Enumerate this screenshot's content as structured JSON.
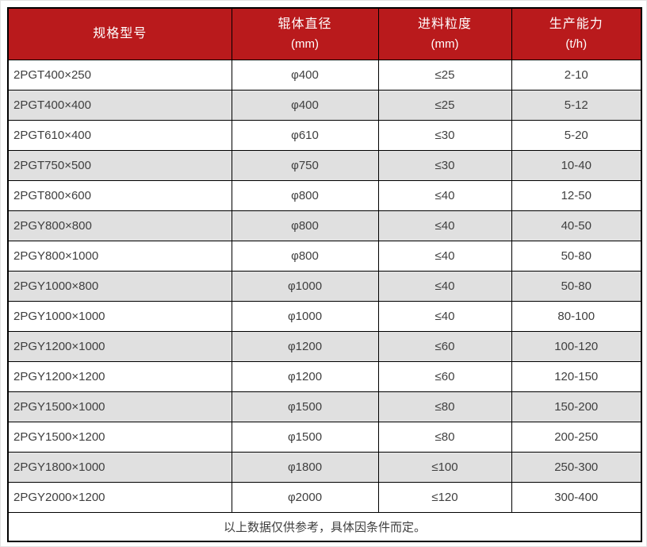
{
  "colors": {
    "header_bg": "#b91a1c",
    "header_fg": "#ffffff",
    "row_alt_bg": "#e0e0e0",
    "text_color": "#3f3f3f",
    "border_color": "#000000"
  },
  "table": {
    "headers": [
      {
        "title": "规格型号",
        "unit": ""
      },
      {
        "title": "辊体直径",
        "unit": "(mm)"
      },
      {
        "title": "进料粒度",
        "unit": "(mm)"
      },
      {
        "title": "生产能力",
        "unit": "(t/h)"
      }
    ],
    "rows": [
      [
        "2PGT400×250",
        "φ400",
        "≤25",
        "2-10"
      ],
      [
        "2PGT400×400",
        "φ400",
        "≤25",
        "5-12"
      ],
      [
        "2PGT610×400",
        "φ610",
        "≤30",
        "5-20"
      ],
      [
        "2PGT750×500",
        "φ750",
        "≤30",
        "10-40"
      ],
      [
        "2PGT800×600",
        "φ800",
        "≤40",
        "12-50"
      ],
      [
        "2PGY800×800",
        "φ800",
        "≤40",
        "40-50"
      ],
      [
        "2PGY800×1000",
        "φ800",
        "≤40",
        "50-80"
      ],
      [
        "2PGY1000×800",
        "φ1000",
        "≤40",
        "50-80"
      ],
      [
        "2PGY1000×1000",
        "φ1000",
        "≤40",
        "80-100"
      ],
      [
        "2PGY1200×1000",
        "φ1200",
        "≤60",
        "100-120"
      ],
      [
        "2PGY1200×1200",
        "φ1200",
        "≤60",
        "120-150"
      ],
      [
        "2PGY1500×1000",
        "φ1500",
        "≤80",
        "150-200"
      ],
      [
        "2PGY1500×1200",
        "φ1500",
        "≤80",
        "200-250"
      ],
      [
        "2PGY1800×1000",
        "φ1800",
        "≤100",
        "250-300"
      ],
      [
        "2PGY2000×1200",
        "φ2000",
        "≤120",
        "300-400"
      ]
    ],
    "footer": "以上数据仅供参考，具体因条件而定。"
  }
}
